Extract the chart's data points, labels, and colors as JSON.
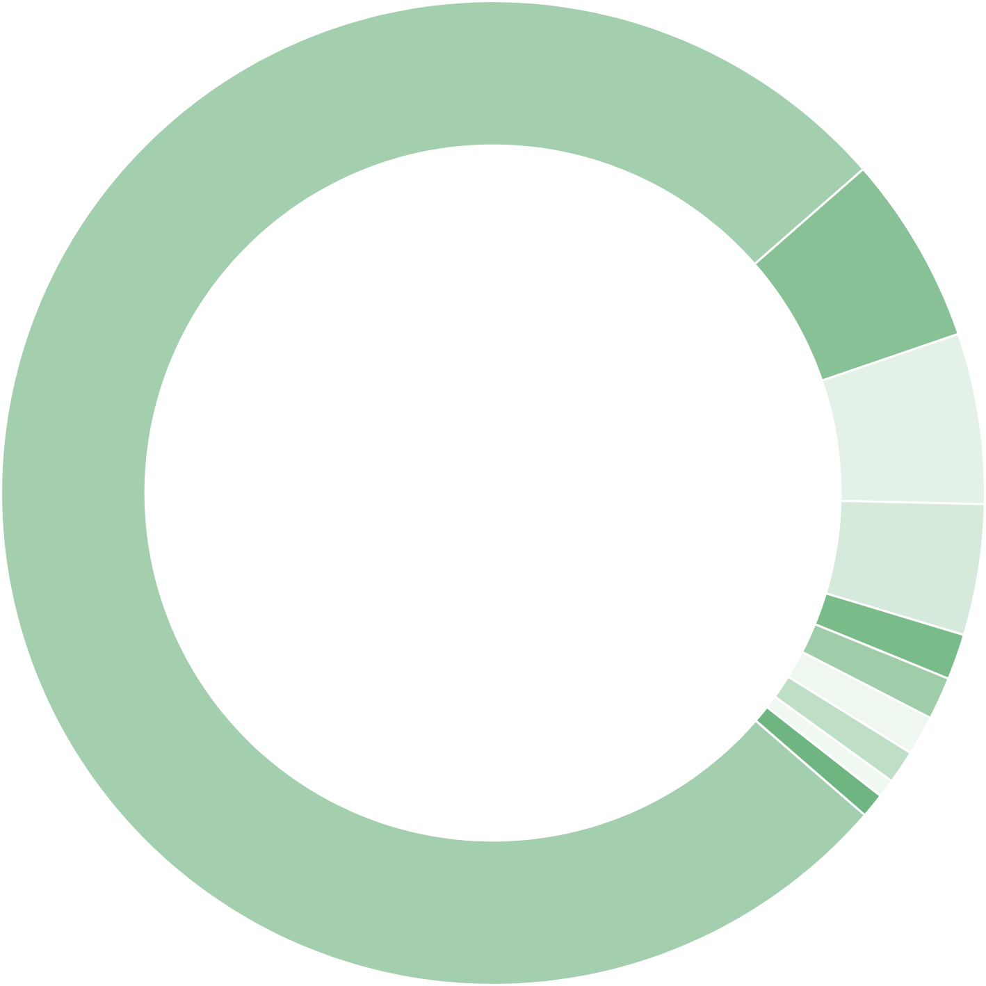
{
  "chart_data": {
    "type": "donut",
    "categories": [
      null,
      null,
      null,
      null,
      null,
      null,
      null,
      null,
      null,
      null
    ],
    "values": [
      77.2,
      6.2,
      5.6,
      4.3,
      1.5,
      1.4,
      1.3,
      1.1,
      0.6,
      0.8
    ],
    "colors": [
      "#a3cfae",
      "#88c196",
      "#e4f1e7",
      "#d5eadb",
      "#7abb8a",
      "#9fcda9",
      "#eef7f0",
      "#bfdec6",
      "#f0f8f2",
      "#6fb581"
    ]
  }
}
